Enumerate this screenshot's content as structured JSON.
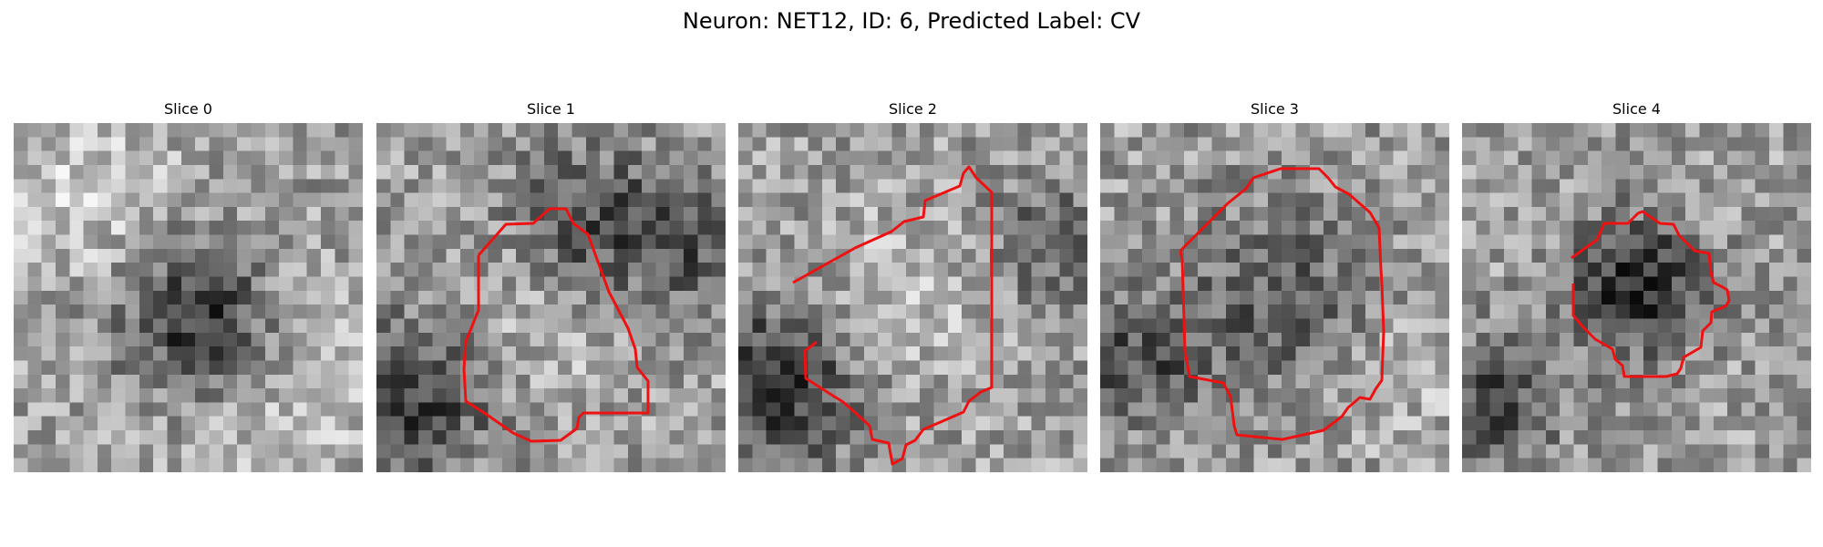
{
  "figure": {
    "title": "Neuron: NET12, ID: 6, Predicted Label: CV"
  },
  "panels": [
    {
      "title": "Slice 0",
      "has_contour": false,
      "seed": 11
    },
    {
      "title": "Slice 1",
      "has_contour": true,
      "seed": 23
    },
    {
      "title": "Slice 2",
      "has_contour": true,
      "seed": 37
    },
    {
      "title": "Slice 3",
      "has_contour": true,
      "seed": 41
    },
    {
      "title": "Slice 4",
      "has_contour": false,
      "seed": 53
    }
  ],
  "colormap": "gray",
  "contour_color": "#ee1111"
}
